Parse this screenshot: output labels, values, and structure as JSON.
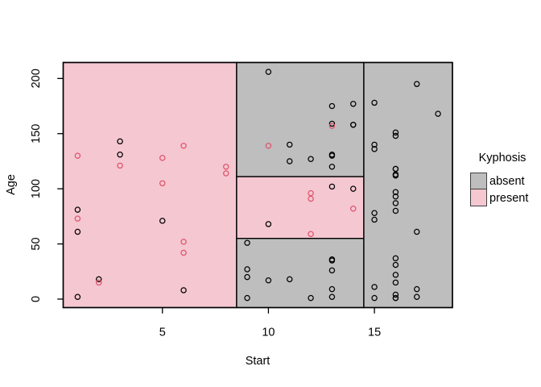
{
  "figure": {
    "background": "#ffffff"
  },
  "chart_data": {
    "type": "scatter",
    "title": "",
    "xlabel": "Start",
    "ylabel": "Age",
    "xlim": [
      0.32,
      18.68
    ],
    "ylim": [
      -7.7,
      214.5
    ],
    "x_ticks": [
      5,
      10,
      15
    ],
    "y_ticks": [
      0,
      50,
      100,
      150,
      200
    ],
    "grid": false,
    "legend_position": "right",
    "regions": [
      {
        "class": "present",
        "x": [
          0.32,
          8.5
        ],
        "y": [
          -7.7,
          214.5
        ]
      },
      {
        "class": "absent",
        "x": [
          8.5,
          14.5
        ],
        "y": [
          111,
          214.5
        ]
      },
      {
        "class": "present",
        "x": [
          8.5,
          14.5
        ],
        "y": [
          55,
          111
        ]
      },
      {
        "class": "absent",
        "x": [
          8.5,
          14.5
        ],
        "y": [
          -7.7,
          55
        ]
      },
      {
        "class": "absent",
        "x": [
          14.5,
          18.68
        ],
        "y": [
          -7.7,
          214.5
        ]
      }
    ],
    "region_fills": {
      "absent": "#BEBEBE",
      "present": "#F4C7D1"
    },
    "series": [
      {
        "name": "absent",
        "point_color": "#000000",
        "points": [
          [
            5,
            71
          ],
          [
            14,
            158
          ],
          [
            1,
            2
          ],
          [
            15,
            1
          ],
          [
            16,
            1
          ],
          [
            17,
            61
          ],
          [
            16,
            37
          ],
          [
            16,
            113
          ],
          [
            2,
            18
          ],
          [
            12,
            1
          ],
          [
            18,
            168
          ],
          [
            16,
            1
          ],
          [
            15,
            78
          ],
          [
            13,
            175
          ],
          [
            16,
            80
          ],
          [
            9,
            27
          ],
          [
            16,
            22
          ],
          [
            3,
            131
          ],
          [
            13,
            9
          ],
          [
            6,
            8
          ],
          [
            14,
            100
          ],
          [
            16,
            4
          ],
          [
            16,
            151
          ],
          [
            16,
            31
          ],
          [
            11,
            125
          ],
          [
            13,
            130
          ],
          [
            16,
            112
          ],
          [
            11,
            140
          ],
          [
            16,
            93
          ],
          [
            9,
            1
          ],
          [
            9,
            20
          ],
          [
            13,
            35
          ],
          [
            3,
            143
          ],
          [
            1,
            61
          ],
          [
            16,
            97
          ],
          [
            15,
            136
          ],
          [
            13,
            131
          ],
          [
            14,
            177
          ],
          [
            10,
            68
          ],
          [
            17,
            9
          ],
          [
            17,
            2
          ],
          [
            15,
            140
          ],
          [
            15,
            72
          ],
          [
            13,
            2
          ],
          [
            9,
            51
          ],
          [
            13,
            102
          ],
          [
            1,
            81
          ],
          [
            16,
            118
          ],
          [
            16,
            118
          ],
          [
            10,
            17
          ],
          [
            17,
            195
          ],
          [
            13,
            159
          ],
          [
            11,
            18
          ],
          [
            16,
            15
          ],
          [
            14,
            158
          ],
          [
            12,
            127
          ],
          [
            16,
            87
          ],
          [
            10,
            206
          ],
          [
            15,
            11
          ],
          [
            15,
            178
          ],
          [
            13,
            26
          ],
          [
            13,
            120
          ],
          [
            13,
            36
          ],
          [
            16,
            148
          ]
        ]
      },
      {
        "name": "present",
        "point_color": "#DF536B",
        "points": [
          [
            5,
            128
          ],
          [
            12,
            59
          ],
          [
            14,
            82
          ],
          [
            5,
            105
          ],
          [
            12,
            96
          ],
          [
            2,
            15
          ],
          [
            6,
            52
          ],
          [
            12,
            91
          ],
          [
            1,
            73
          ],
          [
            10,
            139
          ],
          [
            3,
            121
          ],
          [
            6,
            139
          ],
          [
            8,
            120
          ],
          [
            1,
            130
          ],
          [
            8,
            114
          ],
          [
            13,
            157
          ],
          [
            6,
            42
          ]
        ]
      }
    ]
  },
  "legend": {
    "title": "Kyphosis",
    "entries": [
      {
        "label": "absent",
        "fill": "#BEBEBE"
      },
      {
        "label": "present",
        "fill": "#F4C7D1"
      }
    ]
  }
}
